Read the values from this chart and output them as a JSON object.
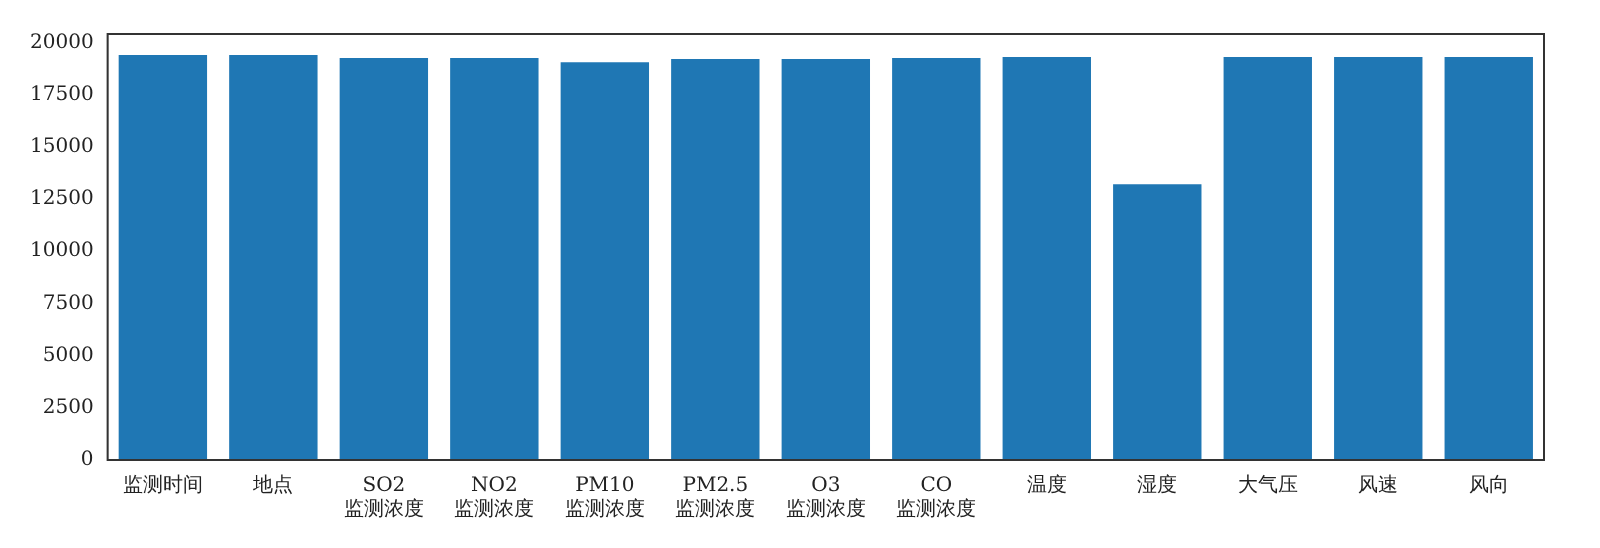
{
  "chart_data": {
    "type": "bar",
    "categories": [
      "监测时间",
      "地点",
      "SO2监测浓度",
      "NO2监测浓度",
      "PM10监测浓度",
      "PM2.5监测浓度",
      "O3监测浓度",
      "CO监测浓度",
      "温度",
      "湿度",
      "大气压",
      "风速",
      "风向"
    ],
    "values": [
      19400,
      19400,
      19250,
      19250,
      19050,
      19200,
      19200,
      19250,
      19300,
      13200,
      19300,
      19300,
      19300
    ],
    "color": "#1f77b4",
    "ylim": [
      0,
      20400
    ],
    "yticks": [
      0,
      2500,
      5000,
      7500,
      10000,
      12500,
      15000,
      17500,
      20000
    ],
    "grid": false,
    "legend": false
  }
}
